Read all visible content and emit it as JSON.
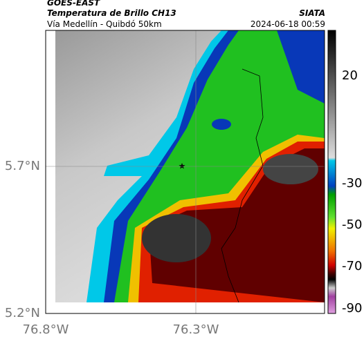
{
  "header": {
    "source": "GOES-EAST",
    "title": "Temperatura de Brillo CH13",
    "agency": "SIATA",
    "subtitle": "Vía Medellín - Quibdó 50km",
    "timestamp": "2024-06-18 00:59"
  },
  "map": {
    "lat_labels": [
      "5.7°N",
      "5.2°N"
    ],
    "lon_labels": [
      "76.8°W",
      "76.3°W"
    ]
  },
  "colorbar": {
    "ticks": [
      20,
      -30,
      -50,
      -70,
      -90
    ]
  }
}
